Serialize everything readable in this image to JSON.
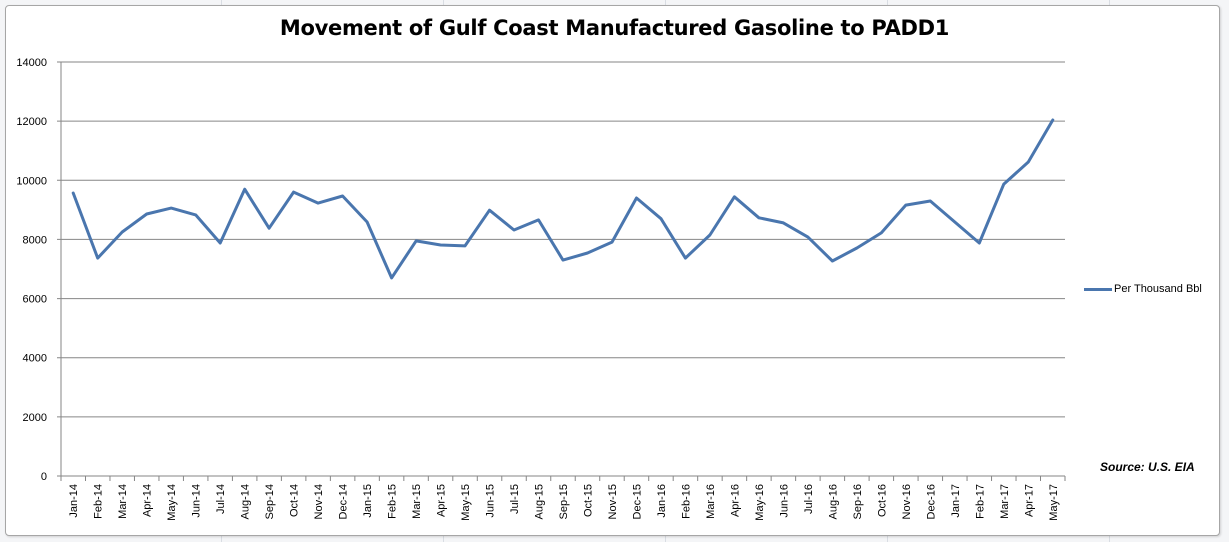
{
  "chart_data": {
    "type": "line",
    "title": "Movement of Gulf Coast Manufactured Gasoline to PADD1",
    "xlabel": "",
    "ylabel": "",
    "ylim": [
      0,
      14000
    ],
    "yticks": [
      0,
      2000,
      4000,
      6000,
      8000,
      10000,
      12000,
      14000
    ],
    "grid": true,
    "legend_position": "right",
    "categories": [
      "Jan-14",
      "Feb-14",
      "Mar-14",
      "Apr-14",
      "May-14",
      "Jun-14",
      "Jul-14",
      "Aug-14",
      "Sep-14",
      "Oct-14",
      "Nov-14",
      "Dec-14",
      "Jan-15",
      "Feb-15",
      "Mar-15",
      "Apr-15",
      "May-15",
      "Jun-15",
      "Jul-15",
      "Aug-15",
      "Sep-15",
      "Oct-15",
      "Nov-15",
      "Dec-15",
      "Jan-16",
      "Feb-16",
      "Mar-16",
      "Apr-16",
      "May-16",
      "Jun-16",
      "Jul-16",
      "Aug-16",
      "Sep-16",
      "Oct-16",
      "Nov-16",
      "Dec-16",
      "Jan-17",
      "Feb-17",
      "Mar-17",
      "Apr-17",
      "May-17"
    ],
    "series": [
      {
        "name": "Per Thousand Bbl",
        "color": "#4a76ae",
        "values": [
          9570,
          7370,
          8250,
          8860,
          9060,
          8830,
          7880,
          9700,
          8380,
          9600,
          9230,
          9470,
          8590,
          6700,
          7950,
          7810,
          7780,
          8990,
          8320,
          8660,
          7300,
          7540,
          7910,
          9400,
          8700,
          7370,
          8150,
          9440,
          8730,
          8560,
          8080,
          7270,
          7710,
          8220,
          9160,
          9300,
          8590,
          7880,
          9870,
          10620,
          12040
        ]
      }
    ],
    "annotations": [
      "Source: U.S. EIA"
    ]
  },
  "legend": {
    "label": "Per Thousand Bbl"
  },
  "source_note": "Source: U.S. EIA",
  "colors": {
    "series": "#4a76ae",
    "grid": "#868686",
    "axis": "#868686"
  }
}
